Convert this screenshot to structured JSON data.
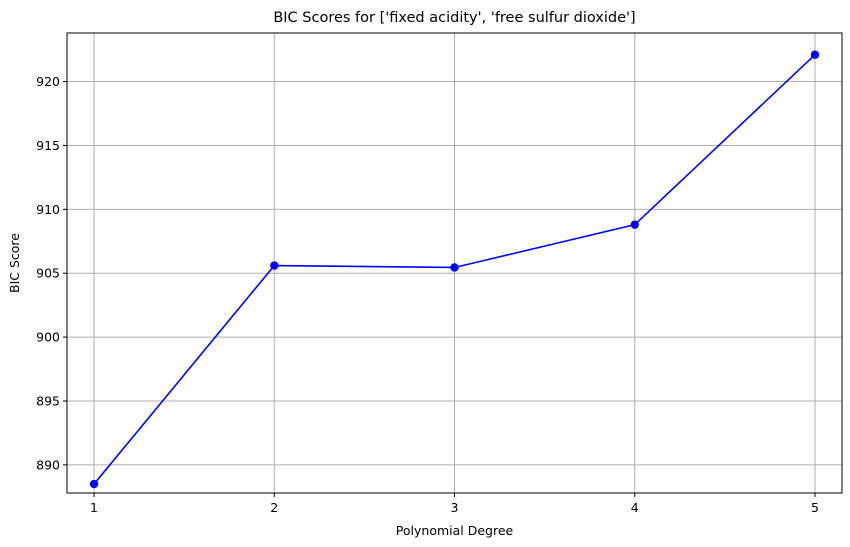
{
  "chart_data": {
    "type": "line",
    "title": "BIC Scores for ['fixed acidity', 'free sulfur dioxide']",
    "xlabel": "Polynomial Degree",
    "ylabel": "BIC Score",
    "x": [
      1,
      2,
      3,
      4,
      5
    ],
    "xticks": [
      "1",
      "2",
      "3",
      "4",
      "5"
    ],
    "yticks": [
      890,
      895,
      900,
      905,
      910,
      915,
      920
    ],
    "xlim": [
      0.85,
      5.15
    ],
    "ylim": [
      887.8,
      923.8
    ],
    "grid": true,
    "series": [
      {
        "values": [
          888.5,
          905.6,
          905.45,
          908.8,
          922.1
        ],
        "color": "#0000ff",
        "marker": "circle"
      }
    ]
  }
}
